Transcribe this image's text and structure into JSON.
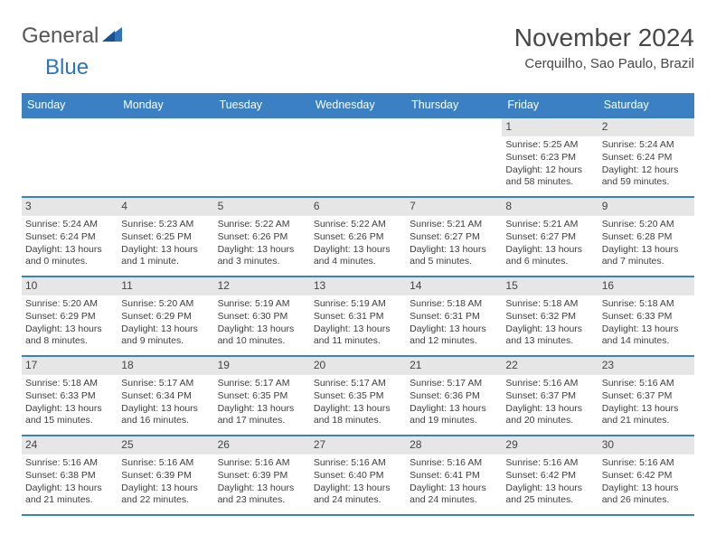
{
  "logo": {
    "general": "General",
    "blue": "Blue"
  },
  "title": "November 2024",
  "subtitle": "Cerquilho, Sao Paulo, Brazil",
  "colors": {
    "header_bg": "#3a80c3",
    "header_text": "#ffffff",
    "daynum_bg": "#e6e6e6",
    "body_text": "#3d3d3d",
    "logo_blue": "#2f73b9",
    "logo_gray": "#565656"
  },
  "day_names": [
    "Sunday",
    "Monday",
    "Tuesday",
    "Wednesday",
    "Thursday",
    "Friday",
    "Saturday"
  ],
  "weeks": [
    [
      {
        "day": null
      },
      {
        "day": null
      },
      {
        "day": null
      },
      {
        "day": null
      },
      {
        "day": null
      },
      {
        "day": 1,
        "sunrise": "Sunrise: 5:25 AM",
        "sunset": "Sunset: 6:23 PM",
        "daylight1": "Daylight: 12 hours",
        "daylight2": "and 58 minutes."
      },
      {
        "day": 2,
        "sunrise": "Sunrise: 5:24 AM",
        "sunset": "Sunset: 6:24 PM",
        "daylight1": "Daylight: 12 hours",
        "daylight2": "and 59 minutes."
      }
    ],
    [
      {
        "day": 3,
        "sunrise": "Sunrise: 5:24 AM",
        "sunset": "Sunset: 6:24 PM",
        "daylight1": "Daylight: 13 hours",
        "daylight2": "and 0 minutes."
      },
      {
        "day": 4,
        "sunrise": "Sunrise: 5:23 AM",
        "sunset": "Sunset: 6:25 PM",
        "daylight1": "Daylight: 13 hours",
        "daylight2": "and 1 minute."
      },
      {
        "day": 5,
        "sunrise": "Sunrise: 5:22 AM",
        "sunset": "Sunset: 6:26 PM",
        "daylight1": "Daylight: 13 hours",
        "daylight2": "and 3 minutes."
      },
      {
        "day": 6,
        "sunrise": "Sunrise: 5:22 AM",
        "sunset": "Sunset: 6:26 PM",
        "daylight1": "Daylight: 13 hours",
        "daylight2": "and 4 minutes."
      },
      {
        "day": 7,
        "sunrise": "Sunrise: 5:21 AM",
        "sunset": "Sunset: 6:27 PM",
        "daylight1": "Daylight: 13 hours",
        "daylight2": "and 5 minutes."
      },
      {
        "day": 8,
        "sunrise": "Sunrise: 5:21 AM",
        "sunset": "Sunset: 6:27 PM",
        "daylight1": "Daylight: 13 hours",
        "daylight2": "and 6 minutes."
      },
      {
        "day": 9,
        "sunrise": "Sunrise: 5:20 AM",
        "sunset": "Sunset: 6:28 PM",
        "daylight1": "Daylight: 13 hours",
        "daylight2": "and 7 minutes."
      }
    ],
    [
      {
        "day": 10,
        "sunrise": "Sunrise: 5:20 AM",
        "sunset": "Sunset: 6:29 PM",
        "daylight1": "Daylight: 13 hours",
        "daylight2": "and 8 minutes."
      },
      {
        "day": 11,
        "sunrise": "Sunrise: 5:20 AM",
        "sunset": "Sunset: 6:29 PM",
        "daylight1": "Daylight: 13 hours",
        "daylight2": "and 9 minutes."
      },
      {
        "day": 12,
        "sunrise": "Sunrise: 5:19 AM",
        "sunset": "Sunset: 6:30 PM",
        "daylight1": "Daylight: 13 hours",
        "daylight2": "and 10 minutes."
      },
      {
        "day": 13,
        "sunrise": "Sunrise: 5:19 AM",
        "sunset": "Sunset: 6:31 PM",
        "daylight1": "Daylight: 13 hours",
        "daylight2": "and 11 minutes."
      },
      {
        "day": 14,
        "sunrise": "Sunrise: 5:18 AM",
        "sunset": "Sunset: 6:31 PM",
        "daylight1": "Daylight: 13 hours",
        "daylight2": "and 12 minutes."
      },
      {
        "day": 15,
        "sunrise": "Sunrise: 5:18 AM",
        "sunset": "Sunset: 6:32 PM",
        "daylight1": "Daylight: 13 hours",
        "daylight2": "and 13 minutes."
      },
      {
        "day": 16,
        "sunrise": "Sunrise: 5:18 AM",
        "sunset": "Sunset: 6:33 PM",
        "daylight1": "Daylight: 13 hours",
        "daylight2": "and 14 minutes."
      }
    ],
    [
      {
        "day": 17,
        "sunrise": "Sunrise: 5:18 AM",
        "sunset": "Sunset: 6:33 PM",
        "daylight1": "Daylight: 13 hours",
        "daylight2": "and 15 minutes."
      },
      {
        "day": 18,
        "sunrise": "Sunrise: 5:17 AM",
        "sunset": "Sunset: 6:34 PM",
        "daylight1": "Daylight: 13 hours",
        "daylight2": "and 16 minutes."
      },
      {
        "day": 19,
        "sunrise": "Sunrise: 5:17 AM",
        "sunset": "Sunset: 6:35 PM",
        "daylight1": "Daylight: 13 hours",
        "daylight2": "and 17 minutes."
      },
      {
        "day": 20,
        "sunrise": "Sunrise: 5:17 AM",
        "sunset": "Sunset: 6:35 PM",
        "daylight1": "Daylight: 13 hours",
        "daylight2": "and 18 minutes."
      },
      {
        "day": 21,
        "sunrise": "Sunrise: 5:17 AM",
        "sunset": "Sunset: 6:36 PM",
        "daylight1": "Daylight: 13 hours",
        "daylight2": "and 19 minutes."
      },
      {
        "day": 22,
        "sunrise": "Sunrise: 5:16 AM",
        "sunset": "Sunset: 6:37 PM",
        "daylight1": "Daylight: 13 hours",
        "daylight2": "and 20 minutes."
      },
      {
        "day": 23,
        "sunrise": "Sunrise: 5:16 AM",
        "sunset": "Sunset: 6:37 PM",
        "daylight1": "Daylight: 13 hours",
        "daylight2": "and 21 minutes."
      }
    ],
    [
      {
        "day": 24,
        "sunrise": "Sunrise: 5:16 AM",
        "sunset": "Sunset: 6:38 PM",
        "daylight1": "Daylight: 13 hours",
        "daylight2": "and 21 minutes."
      },
      {
        "day": 25,
        "sunrise": "Sunrise: 5:16 AM",
        "sunset": "Sunset: 6:39 PM",
        "daylight1": "Daylight: 13 hours",
        "daylight2": "and 22 minutes."
      },
      {
        "day": 26,
        "sunrise": "Sunrise: 5:16 AM",
        "sunset": "Sunset: 6:39 PM",
        "daylight1": "Daylight: 13 hours",
        "daylight2": "and 23 minutes."
      },
      {
        "day": 27,
        "sunrise": "Sunrise: 5:16 AM",
        "sunset": "Sunset: 6:40 PM",
        "daylight1": "Daylight: 13 hours",
        "daylight2": "and 24 minutes."
      },
      {
        "day": 28,
        "sunrise": "Sunrise: 5:16 AM",
        "sunset": "Sunset: 6:41 PM",
        "daylight1": "Daylight: 13 hours",
        "daylight2": "and 24 minutes."
      },
      {
        "day": 29,
        "sunrise": "Sunrise: 5:16 AM",
        "sunset": "Sunset: 6:42 PM",
        "daylight1": "Daylight: 13 hours",
        "daylight2": "and 25 minutes."
      },
      {
        "day": 30,
        "sunrise": "Sunrise: 5:16 AM",
        "sunset": "Sunset: 6:42 PM",
        "daylight1": "Daylight: 13 hours",
        "daylight2": "and 26 minutes."
      }
    ]
  ]
}
